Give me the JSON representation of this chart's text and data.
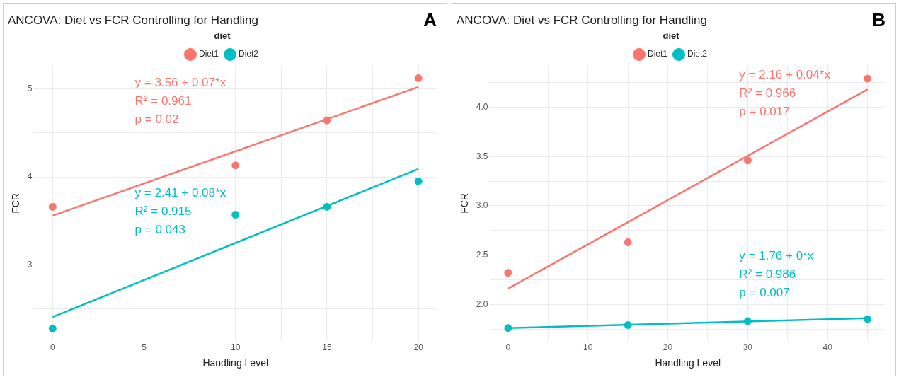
{
  "chart_data": [
    {
      "type": "scatter",
      "title": "ANCOVA: Diet vs FCR Controlling for Handling",
      "xlabel": "Handling Level",
      "ylabel": "FCR",
      "legend_title": "diet",
      "legend": "top",
      "grid": true,
      "marker": "circle",
      "x": [
        0,
        10,
        15,
        20
      ],
      "series": [
        {
          "name": "Diet1",
          "color": "#f8766d",
          "values": [
            3.66,
            4.13,
            4.64,
            5.12
          ]
        },
        {
          "name": "Diet2",
          "color": "#00bfc4",
          "values": [
            2.28,
            3.57,
            3.66,
            3.95
          ]
        },
        {
          "type": "line",
          "color": "#f8766d",
          "x": [
            0,
            20
          ],
          "values": [
            3.56,
            5.02
          ],
          "marker": "none"
        },
        {
          "type": "line",
          "color": "#00bfc4",
          "x": [
            0,
            20
          ],
          "values": [
            2.41,
            4.09
          ],
          "marker": "none"
        }
      ],
      "xlim": [
        -1,
        21
      ],
      "xticks": [
        0,
        {
          "value": 2.5,
          "label": null
        },
        5,
        {
          "value": 7.5,
          "label": null
        },
        10,
        {
          "value": 12.5,
          "label": null
        },
        15,
        {
          "value": 17.5,
          "label": null
        },
        20
      ],
      "ylim": [
        2.14,
        5.26
      ],
      "yticks": [
        {
          "value": 2.5,
          "label": null
        },
        3,
        {
          "value": 3.5,
          "label": null
        },
        4,
        {
          "value": 4.5,
          "label": null
        },
        5
      ],
      "annotations": [
        "A",
        "y = 3.56 + 0.07*x\nR² = 0.961\np = 0.02",
        "y = 2.41 + 0.08*x\nR² = 0.915\np = 0.043"
      ]
    },
    {
      "type": "scatter",
      "title": "ANCOVA: Diet vs FCR Controlling for Handling",
      "xlabel": "Handling Level",
      "ylabel": "FCR",
      "legend_title": "diet",
      "legend": "top",
      "grid": true,
      "marker": "circle",
      "x": [
        0,
        15,
        30,
        45
      ],
      "series": [
        {
          "name": "Diet1",
          "color": "#f8766d",
          "values": [
            2.32,
            2.63,
            3.46,
            4.29
          ]
        },
        {
          "name": "Diet2",
          "color": "#00bfc4",
          "values": [
            1.76,
            1.79,
            1.83,
            1.85
          ]
        },
        {
          "type": "line",
          "color": "#f8766d",
          "x": [
            0,
            45
          ],
          "values": [
            2.16,
            4.18
          ],
          "marker": "none"
        },
        {
          "type": "line",
          "color": "#00bfc4",
          "x": [
            0,
            45
          ],
          "values": [
            1.76,
            1.86
          ],
          "marker": "none"
        }
      ],
      "xlim": [
        -2.25,
        47.25
      ],
      "xticks": [
        0,
        {
          "value": 5,
          "label": null
        },
        10,
        {
          "value": 15,
          "label": null
        },
        20,
        {
          "value": 25,
          "label": null
        },
        30,
        {
          "value": 35,
          "label": null
        },
        40,
        {
          "value": 45,
          "label": null
        }
      ],
      "ylim": [
        1.63,
        4.42
      ],
      "yticks": [
        {
          "value": 1.75,
          "label": null
        },
        {
          "value": 2,
          "label": "2.0"
        },
        {
          "value": 2.25,
          "label": null
        },
        2.5,
        {
          "value": 2.75,
          "label": null
        },
        {
          "value": 3,
          "label": "3.0"
        },
        {
          "value": 3.25,
          "label": null
        },
        3.5,
        {
          "value": 3.75,
          "label": null
        },
        {
          "value": 4,
          "label": "4.0"
        },
        {
          "value": 4.25,
          "label": null
        }
      ],
      "annotations": [
        "B",
        "y = 2.16 + 0.04*x\nR² = 0.966\np = 0.017",
        "y = 1.76 + 0*x\nR² = 0.986\np = 0.007"
      ]
    }
  ]
}
